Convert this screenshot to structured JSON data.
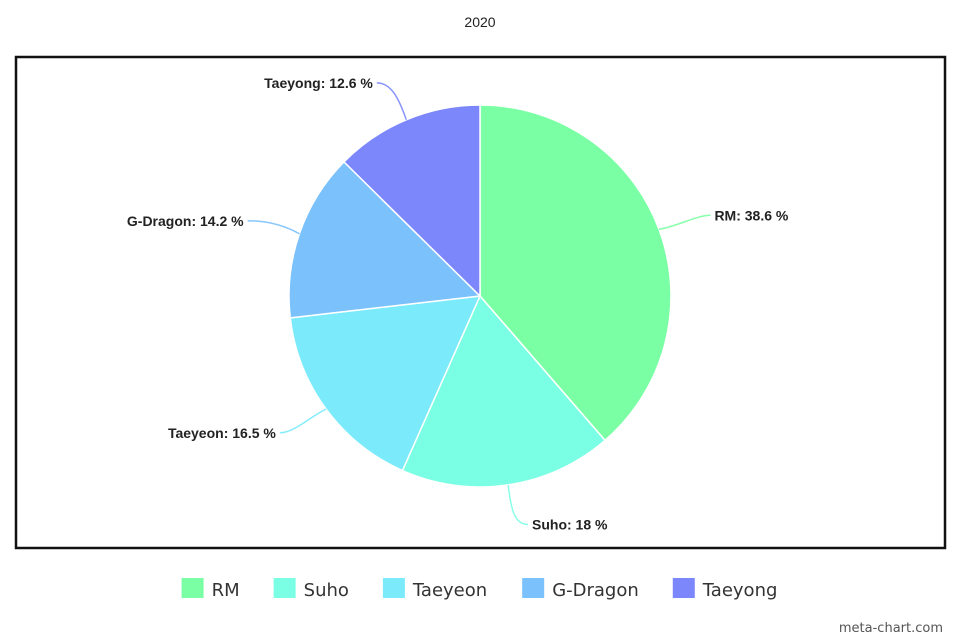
{
  "watermark": "meta-chart.com",
  "chart_data": {
    "type": "pie",
    "title": "2020",
    "categories": [
      "RM",
      "Suho",
      "Taeyeon",
      "G-Dragon",
      "Taeyong"
    ],
    "values": [
      38.6,
      18,
      16.5,
      14.2,
      12.6
    ],
    "value_suffix": " %",
    "data_labels": [
      "RM: 38.6 %",
      "Suho: 18 %",
      "Taeyeon: 16.5 %",
      "G-Dragon: 14.2 %",
      "Taeyong: 12.6 %"
    ],
    "colors": [
      "#7bffa4",
      "#7bffe4",
      "#7bebfc",
      "#7bc1fb",
      "#7b87fb"
    ],
    "legend": {
      "position": "bottom",
      "entries": [
        "RM",
        "Suho",
        "Taeyeon",
        "G-Dragon",
        "Taeyong"
      ]
    },
    "start_angle_deg": 0,
    "direction": "clockwise"
  }
}
